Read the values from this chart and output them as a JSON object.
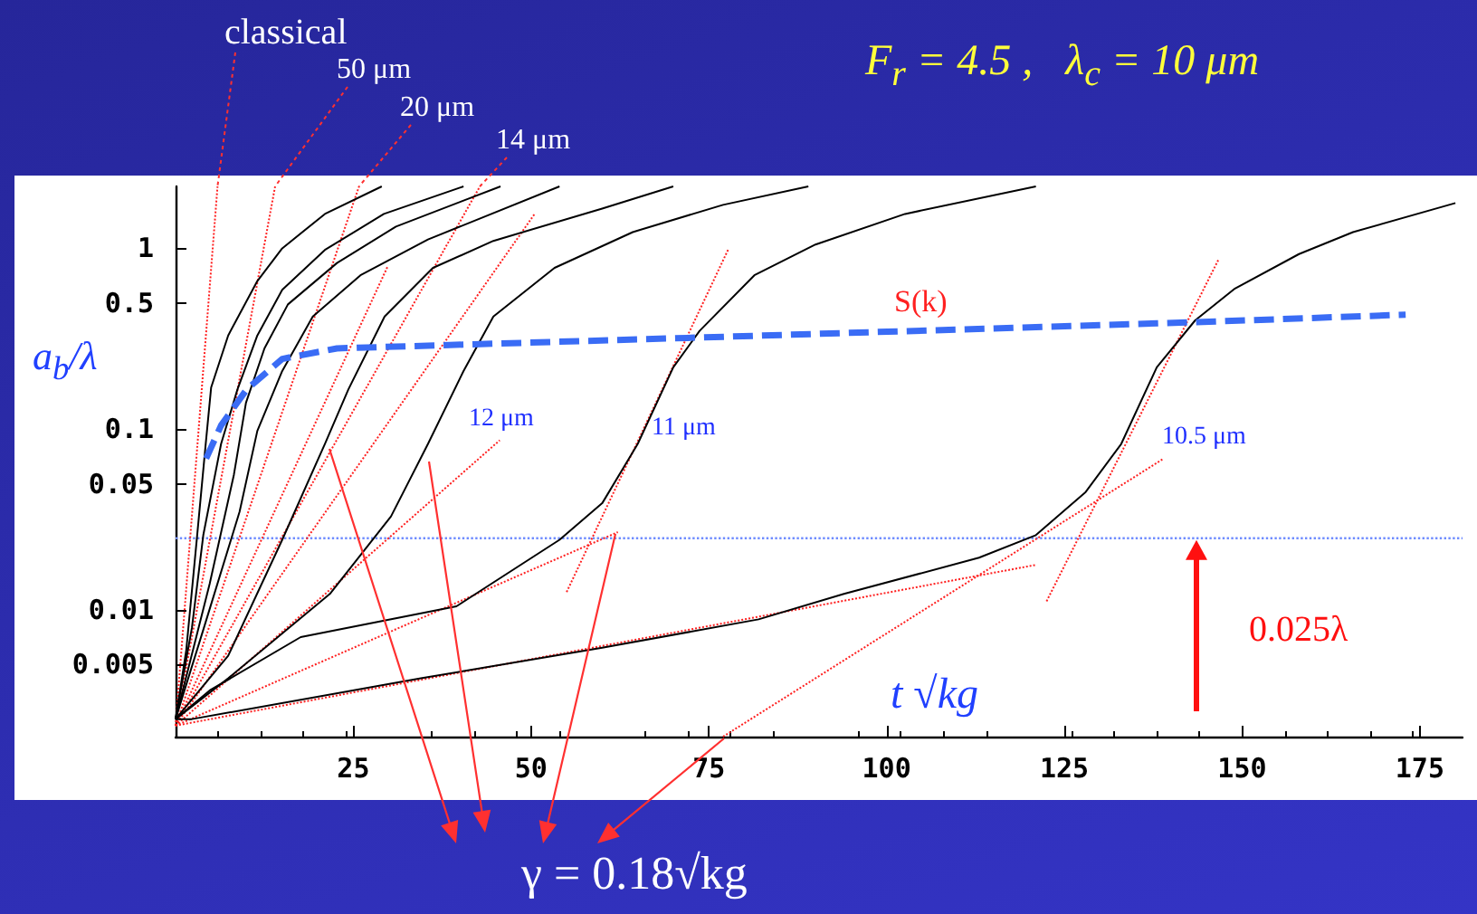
{
  "chart_data": {
    "type": "line",
    "title": "F$_{r}$ = 4.5 ,   λ$_{c}$ = 10 μm",
    "xlabel": "t √kg",
    "ylabel": "a$_{b}$/λ",
    "xlim": [
      0,
      181
    ],
    "xticks": [
      25,
      50,
      75,
      100,
      125,
      150,
      175
    ],
    "ylim": [
      0.002,
      2.2
    ],
    "yticks": [
      0.005,
      0.01,
      0.05,
      0.1,
      0.5,
      1
    ],
    "log": "y",
    "grid": false,
    "marker": "none",
    "line_style": "solid",
    "series": [
      {
        "color": "#000000",
        "x": [
          0,
          1.5,
          3,
          4.2,
          5,
          7.4,
          11.5,
          15,
          21,
          29
        ],
        "values": [
          0.0025,
          0.006,
          0.025,
          0.08,
          0.17,
          0.33,
          0.66,
          1.0,
          1.55,
          2.2
        ]
      },
      {
        "color": "#000000",
        "x": [
          0,
          2.3,
          3.9,
          6.4,
          8.7,
          11.5,
          15,
          21,
          29.3,
          40.5
        ],
        "values": [
          0.0025,
          0.008,
          0.026,
          0.083,
          0.166,
          0.33,
          0.59,
          0.98,
          1.55,
          2.2
        ]
      },
      {
        "color": "#000000",
        "x": [
          0,
          4.8,
          8.2,
          9.9,
          12.5,
          15.8,
          22.7,
          31,
          45.7
        ],
        "values": [
          0.0025,
          0.014,
          0.056,
          0.14,
          0.28,
          0.49,
          0.83,
          1.32,
          2.2
        ]
      },
      {
        "color": "#000000",
        "x": [
          0,
          3.9,
          9,
          11.5,
          15,
          19.3,
          26,
          35.5,
          54
        ],
        "values": [
          0.0025,
          0.0078,
          0.035,
          0.098,
          0.21,
          0.42,
          0.71,
          1.12,
          2.2
        ]
      },
      {
        "color": "#000000",
        "x": [
          0,
          7.4,
          15,
          21,
          24.3,
          29.4,
          36.2,
          44.7,
          60,
          70
        ],
        "values": [
          0.0025,
          0.0056,
          0.0245,
          0.083,
          0.166,
          0.42,
          0.78,
          1.1,
          1.66,
          2.2
        ]
      },
      {
        "color": "#000000",
        "x": [
          0,
          7.4,
          21.7,
          30.3,
          35.5,
          40.5,
          44.7,
          53.3,
          64.3,
          77,
          89
        ],
        "values": [
          0.0025,
          0.0042,
          0.0123,
          0.033,
          0.083,
          0.21,
          0.42,
          0.78,
          1.23,
          1.74,
          2.2
        ]
      },
      {
        "color": "#000000",
        "x": [
          0,
          4.8,
          17.6,
          39.5,
          54,
          60,
          65,
          70,
          73.7,
          81.4,
          90,
          102.6,
          121
        ],
        "values": [
          0.0025,
          0.0036,
          0.0071,
          0.0105,
          0.0245,
          0.039,
          0.083,
          0.22,
          0.35,
          0.71,
          1.05,
          1.55,
          2.2
        ]
      },
      {
        "color": "#000000",
        "x": [
          0,
          2.3,
          34.5,
          60,
          82,
          94,
          113,
          121,
          128,
          133,
          138,
          143.4,
          149,
          158,
          165.6,
          180
        ],
        "values": [
          0.0025,
          0.0025,
          0.0042,
          0.0062,
          0.0089,
          0.0123,
          0.0195,
          0.026,
          0.045,
          0.083,
          0.22,
          0.4,
          0.6,
          0.93,
          1.23,
          1.78
        ]
      },
      {
        "color": "#3a6cf5",
        "line_style": "dashed",
        "x": [
          4.3,
          6.4,
          10,
          15,
          22.7,
          42,
          72,
          142.6,
          173
        ],
        "values": [
          0.069,
          0.105,
          0.166,
          0.245,
          0.28,
          0.295,
          0.32,
          0.39,
          0.43
        ]
      },
      {
        "color": "#ff2020",
        "line_style": "dotted",
        "x": [
          0,
          5.9
        ],
        "values": [
          0.0023,
          2.2
        ]
      },
      {
        "color": "#ff2020",
        "line_style": "dotted",
        "x": [
          0,
          14
        ],
        "values": [
          0.0023,
          2.2
        ]
      },
      {
        "color": "#ff2020",
        "line_style": "dotted",
        "x": [
          0,
          25.8
        ],
        "values": [
          0.0023,
          2.2
        ]
      },
      {
        "color": "#ff2020",
        "line_style": "dotted",
        "x": [
          0,
          42.8
        ],
        "values": [
          0.0023,
          2.2
        ]
      },
      {
        "color": "#ff2020",
        "line_style": "dotted",
        "x": [
          0,
          29.8
        ],
        "values": [
          0.0023,
          0.79
        ]
      },
      {
        "color": "#ff2020",
        "line_style": "dotted",
        "x": [
          0,
          50.5
        ],
        "values": [
          0.0023,
          1.55
        ]
      },
      {
        "color": "#ff2020",
        "line_style": "dotted",
        "x": [
          0,
          45.6
        ],
        "values": [
          0.0023,
          0.087
        ]
      },
      {
        "color": "#ff2020",
        "line_style": "dotted",
        "x": [
          0,
          62.2
        ],
        "values": [
          0.0023,
          0.027
        ]
      },
      {
        "color": "#ff2020",
        "line_style": "dotted",
        "x": [
          55,
          77.8
        ],
        "values": [
          0.0126,
          1.0
        ]
      },
      {
        "color": "#ff2020",
        "line_style": "dotted",
        "x": [
          0,
          121
        ],
        "values": [
          0.0023,
          0.0178
        ]
      },
      {
        "color": "#ff2020",
        "line_style": "dotted",
        "x": [
          122.5,
          146.7
        ],
        "values": [
          0.0112,
          0.87
        ]
      },
      {
        "color": "#ff2020",
        "line_style": "dotted",
        "x": [
          77,
          139
        ],
        "values": [
          0.002,
          0.069
        ]
      }
    ],
    "ref_lines": [
      {
        "axis": "y",
        "value": 0.025,
        "label": "0.025λ",
        "color": "#6f8cff",
        "line_style": "dotted"
      }
    ],
    "annotations": [
      "classical",
      "50 μm",
      "20 μm",
      "14 μm",
      "12 μm",
      "11 μm",
      "10.5 μm",
      "S(k)",
      "γ = 0.18√kg"
    ]
  }
}
